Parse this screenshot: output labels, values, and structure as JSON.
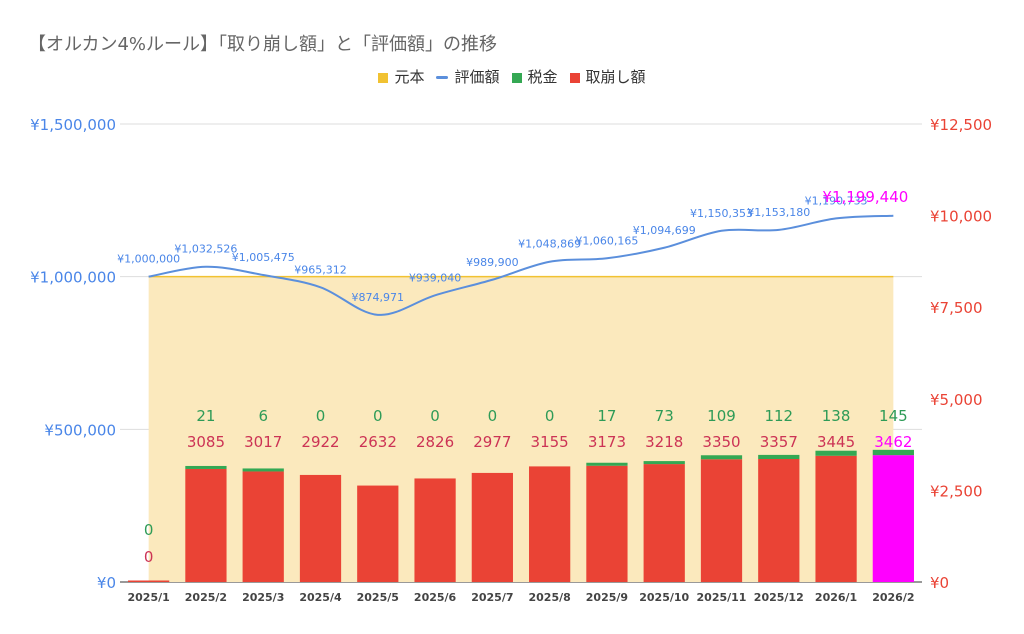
{
  "title": "【オルカン4%ルール】「取り崩し額」と「評価額」の推移",
  "legend": [
    {
      "label": "元本",
      "color": "#f1c232",
      "shape": "square"
    },
    {
      "label": "評価額",
      "color": "#5b8fdc",
      "shape": "line"
    },
    {
      "label": "税金",
      "color": "#34a853",
      "shape": "square"
    },
    {
      "label": "取崩し額",
      "color": "#ea4335",
      "shape": "square"
    }
  ],
  "chart_data": {
    "type": "bar",
    "categories": [
      "2025/1",
      "2025/2",
      "2025/3",
      "2025/4",
      "2025/5",
      "2025/6",
      "2025/7",
      "2025/8",
      "2025/9",
      "2025/10",
      "2025/11",
      "2025/12",
      "2026/1",
      "2026/2"
    ],
    "left_axis": {
      "ylim": [
        0,
        1500000
      ],
      "ticks": [
        "¥0",
        "¥500,000",
        "¥1,000,000",
        "¥1,500,000"
      ],
      "tick_values": [
        0,
        500000,
        1000000,
        1500000
      ],
      "color": "#4a86e8"
    },
    "right_axis": {
      "ylim": [
        0,
        12500
      ],
      "ticks": [
        "¥0",
        "¥2,500",
        "¥5,000",
        "¥7,500",
        "¥10,000",
        "¥12,500"
      ],
      "tick_values": [
        0,
        2500,
        5000,
        7500,
        10000,
        12500
      ],
      "color": "#ea4335"
    },
    "grid": true,
    "legend_position": "top",
    "highlight": {
      "index": 13,
      "color": "#ff00ff"
    },
    "series": [
      {
        "name": "元本",
        "type": "area",
        "axis": "left",
        "color": "#f1c232",
        "values": [
          1000000,
          1000000,
          1000000,
          1000000,
          1000000,
          1000000,
          1000000,
          1000000,
          1000000,
          1000000,
          1000000,
          1000000,
          1000000,
          1000000
        ]
      },
      {
        "name": "評価額",
        "type": "line",
        "axis": "left",
        "color": "#5b8fdc",
        "values": [
          1000000,
          1032526,
          1005475,
          965312,
          874971,
          939040,
          989900,
          1048869,
          1060165,
          1094699,
          1150353,
          1153180,
          1190733,
          1199440
        ],
        "labels": [
          "¥1,000,000",
          "¥1,032,526",
          "¥1,005,475",
          "¥965,312",
          "¥874,971",
          "¥939,040",
          "¥989,900",
          "¥1,048,869",
          "¥1,060,165",
          "¥1,094,699",
          "¥1,150,353",
          "¥1,153,180",
          "¥1,190,733",
          "¥1,199,440"
        ]
      },
      {
        "name": "取崩し額",
        "type": "bar",
        "axis": "right",
        "color": "#ea4335",
        "values": [
          0,
          3085,
          3017,
          2922,
          2632,
          2826,
          2977,
          3155,
          3173,
          3218,
          3350,
          3357,
          3445,
          3462
        ]
      },
      {
        "name": "税金",
        "type": "bar",
        "axis": "right",
        "color": "#34a853",
        "values": [
          0,
          21,
          6,
          0,
          0,
          0,
          0,
          0,
          17,
          73,
          109,
          112,
          138,
          145
        ]
      }
    ]
  }
}
